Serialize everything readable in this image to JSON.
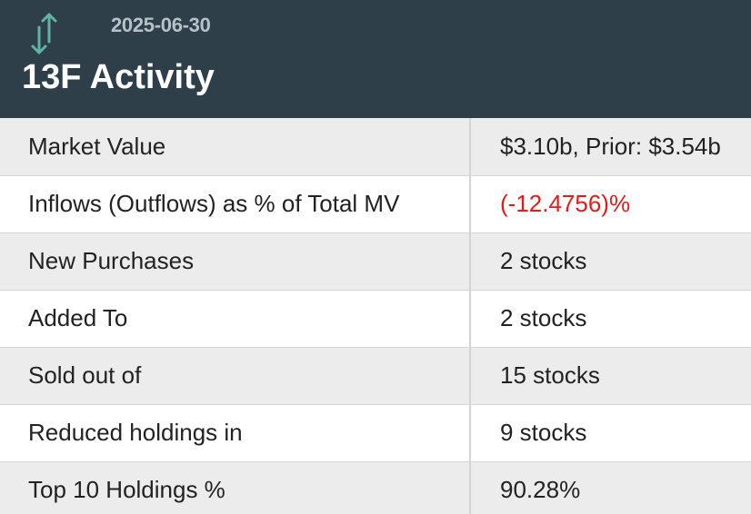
{
  "header": {
    "date": "2025-06-30",
    "title": "13F Activity",
    "icon": "up-down-arrows-icon",
    "accent_color": "#5fb5a3",
    "background_color": "#2e3f4a"
  },
  "rows": [
    {
      "label": "Market Value",
      "value": "$3.10b, Prior: $3.54b",
      "status": "normal"
    },
    {
      "label": "Inflows (Outflows) as % of Total MV",
      "value": "(-12.4756)%",
      "status": "negative"
    },
    {
      "label": "New Purchases",
      "value": "2 stocks",
      "status": "normal"
    },
    {
      "label": "Added To",
      "value": "2 stocks",
      "status": "normal"
    },
    {
      "label": "Sold out of",
      "value": "15 stocks",
      "status": "normal"
    },
    {
      "label": "Reduced holdings in",
      "value": "9 stocks",
      "status": "normal"
    },
    {
      "label": "Top 10 Holdings %",
      "value": "90.28%",
      "status": "normal"
    }
  ],
  "colors": {
    "negative": "#e31b1b",
    "row_alt": "#ececec"
  }
}
